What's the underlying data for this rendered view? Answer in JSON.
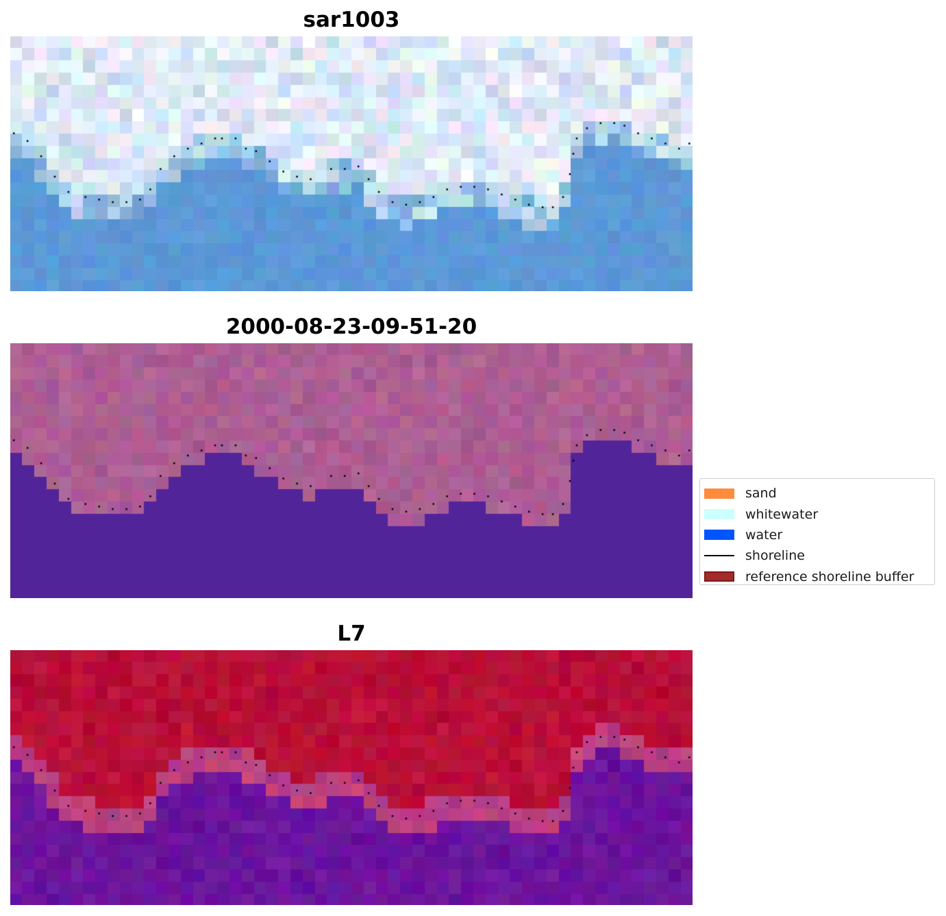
{
  "panels": [
    {
      "title": "sar1003",
      "palette": "rgb"
    },
    {
      "title": "2000-08-23-09-51-20",
      "palette": "classified"
    },
    {
      "title": "L7",
      "palette": "index"
    }
  ],
  "legend": {
    "items": [
      {
        "label": "sand",
        "type": "patch",
        "color": "#ff8c3d"
      },
      {
        "label": "whitewater",
        "type": "patch",
        "color": "#ccffff"
      },
      {
        "label": "water",
        "type": "patch",
        "color": "#0055ff"
      },
      {
        "label": "shoreline",
        "type": "line",
        "color": "#000000"
      },
      {
        "label": "reference shoreline buffer",
        "type": "patch",
        "color": "#a52a2a",
        "edge": "#7a1a1a"
      }
    ]
  },
  "colors": {
    "water_rgb_blue": "#5a95d3",
    "sand_rgb_white": "#e9eef8",
    "classified_water": "#52249a",
    "classified_land": "#a0578f",
    "index_land": "#c01440",
    "index_water": "#5e0b9c",
    "shoreline_dots": "#000000"
  },
  "shoreline": [
    [
      0.005,
      0.38
    ],
    [
      0.025,
      0.41
    ],
    [
      0.045,
      0.47
    ],
    [
      0.065,
      0.55
    ],
    [
      0.085,
      0.61
    ],
    [
      0.11,
      0.63
    ],
    [
      0.13,
      0.64
    ],
    [
      0.15,
      0.65
    ],
    [
      0.17,
      0.65
    ],
    [
      0.19,
      0.64
    ],
    [
      0.205,
      0.6
    ],
    [
      0.22,
      0.52
    ],
    [
      0.24,
      0.47
    ],
    [
      0.26,
      0.44
    ],
    [
      0.28,
      0.42
    ],
    [
      0.3,
      0.4
    ],
    [
      0.31,
      0.4
    ],
    [
      0.33,
      0.4
    ],
    [
      0.345,
      0.44
    ],
    [
      0.36,
      0.45
    ],
    [
      0.38,
      0.49
    ],
    [
      0.4,
      0.53
    ],
    [
      0.42,
      0.55
    ],
    [
      0.44,
      0.56
    ],
    [
      0.47,
      0.52
    ],
    [
      0.49,
      0.52
    ],
    [
      0.51,
      0.51
    ],
    [
      0.525,
      0.56
    ],
    [
      0.54,
      0.61
    ],
    [
      0.56,
      0.65
    ],
    [
      0.58,
      0.66
    ],
    [
      0.6,
      0.65
    ],
    [
      0.62,
      0.63
    ],
    [
      0.64,
      0.6
    ],
    [
      0.66,
      0.59
    ],
    [
      0.68,
      0.59
    ],
    [
      0.7,
      0.6
    ],
    [
      0.72,
      0.62
    ],
    [
      0.74,
      0.64
    ],
    [
      0.76,
      0.66
    ],
    [
      0.78,
      0.67
    ],
    [
      0.795,
      0.67
    ],
    [
      0.81,
      0.63
    ],
    [
      0.82,
      0.54
    ],
    [
      0.825,
      0.46
    ],
    [
      0.83,
      0.4
    ],
    [
      0.845,
      0.36
    ],
    [
      0.865,
      0.34
    ],
    [
      0.885,
      0.34
    ],
    [
      0.9,
      0.35
    ],
    [
      0.92,
      0.38
    ],
    [
      0.94,
      0.4
    ],
    [
      0.96,
      0.42
    ],
    [
      0.98,
      0.44
    ],
    [
      0.995,
      0.42
    ]
  ]
}
